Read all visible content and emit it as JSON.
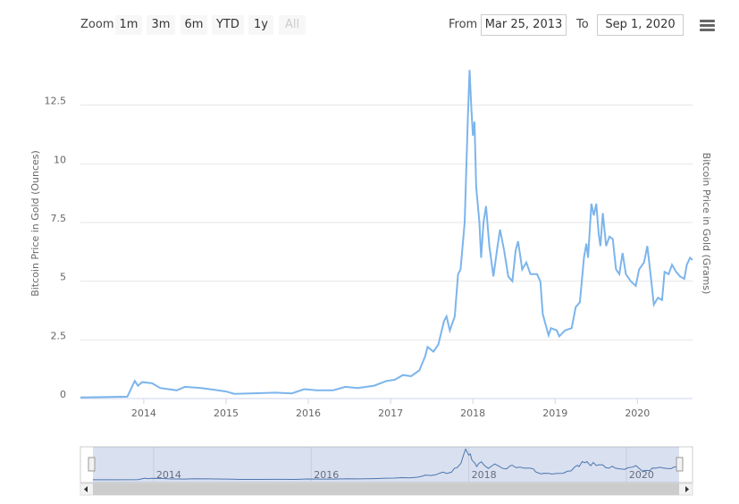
{
  "toolbar": {
    "zoom_label": "Zoom",
    "zoom_buttons": [
      "1m",
      "3m",
      "6m",
      "YTD",
      "1y",
      "All"
    ],
    "from_label": "From",
    "from_value": "Mar 25, 2013",
    "to_label": "To",
    "to_value": "Sep 1, 2020"
  },
  "chart_data": {
    "type": "line",
    "y_label": "Bitcoin Price in Gold (Ounces)",
    "y2_label": "Bitcoin Price in Gold (Grams)",
    "color": "#7cb5ec",
    "grid": true,
    "xlim": [
      2013.23,
      2020.67
    ],
    "xticks": [
      2014,
      2015,
      2016,
      2017,
      2018,
      2019,
      2020
    ],
    "ylim": [
      0,
      15
    ],
    "yticks": [
      0,
      2.5,
      5,
      7.5,
      10,
      12.5
    ],
    "navigator_xticks": [
      2014,
      2016,
      2018,
      2020
    ],
    "x": [
      2013.23,
      2013.5,
      2013.8,
      2013.89,
      2013.93,
      2013.98,
      2014.1,
      2014.2,
      2014.3,
      2014.4,
      2014.5,
      2014.7,
      2014.9,
      2015.0,
      2015.1,
      2015.3,
      2015.6,
      2015.8,
      2015.95,
      2016.1,
      2016.3,
      2016.45,
      2016.6,
      2016.8,
      2016.95,
      2017.05,
      2017.15,
      2017.25,
      2017.35,
      2017.42,
      2017.45,
      2017.52,
      2017.58,
      2017.65,
      2017.68,
      2017.72,
      2017.78,
      2017.82,
      2017.85,
      2017.9,
      2017.94,
      2017.96,
      2017.98,
      2018.0,
      2018.02,
      2018.04,
      2018.08,
      2018.1,
      2018.13,
      2018.16,
      2018.2,
      2018.25,
      2018.3,
      2018.33,
      2018.38,
      2018.43,
      2018.48,
      2018.52,
      2018.55,
      2018.6,
      2018.65,
      2018.7,
      2018.78,
      2018.82,
      2018.85,
      2018.88,
      2018.92,
      2018.95,
      2019.02,
      2019.05,
      2019.12,
      2019.2,
      2019.25,
      2019.3,
      2019.35,
      2019.38,
      2019.4,
      2019.44,
      2019.47,
      2019.5,
      2019.53,
      2019.55,
      2019.58,
      2019.62,
      2019.66,
      2019.7,
      2019.74,
      2019.78,
      2019.82,
      2019.86,
      2019.92,
      2019.98,
      2020.02,
      2020.08,
      2020.12,
      2020.16,
      2020.2,
      2020.25,
      2020.3,
      2020.33,
      2020.38,
      2020.42,
      2020.47,
      2020.52,
      2020.57,
      2020.6,
      2020.64,
      2020.67
    ],
    "values": [
      0.05,
      0.06,
      0.08,
      0.75,
      0.55,
      0.7,
      0.65,
      0.45,
      0.4,
      0.35,
      0.5,
      0.45,
      0.35,
      0.3,
      0.2,
      0.22,
      0.25,
      0.22,
      0.4,
      0.35,
      0.35,
      0.5,
      0.45,
      0.55,
      0.75,
      0.8,
      1.0,
      0.95,
      1.2,
      1.8,
      2.2,
      2.0,
      2.3,
      3.3,
      3.5,
      2.9,
      3.5,
      5.3,
      5.5,
      7.5,
      12.0,
      14.0,
      12.5,
      11.2,
      11.8,
      9.0,
      7.5,
      6.0,
      7.5,
      8.2,
      6.5,
      5.2,
      6.5,
      7.2,
      6.3,
      5.2,
      5.0,
      6.3,
      6.7,
      5.5,
      5.8,
      5.3,
      5.3,
      5.0,
      3.6,
      3.2,
      2.7,
      3.0,
      2.9,
      2.65,
      2.9,
      3.0,
      3.9,
      4.1,
      6.0,
      6.6,
      6.0,
      8.3,
      7.8,
      8.3,
      7.0,
      6.5,
      7.9,
      6.5,
      6.9,
      6.8,
      5.5,
      5.3,
      6.2,
      5.3,
      5.0,
      4.8,
      5.5,
      5.8,
      6.5,
      5.3,
      4.0,
      4.3,
      4.2,
      5.4,
      5.3,
      5.7,
      5.4,
      5.2,
      5.1,
      5.7,
      6.0,
      5.9
    ]
  }
}
